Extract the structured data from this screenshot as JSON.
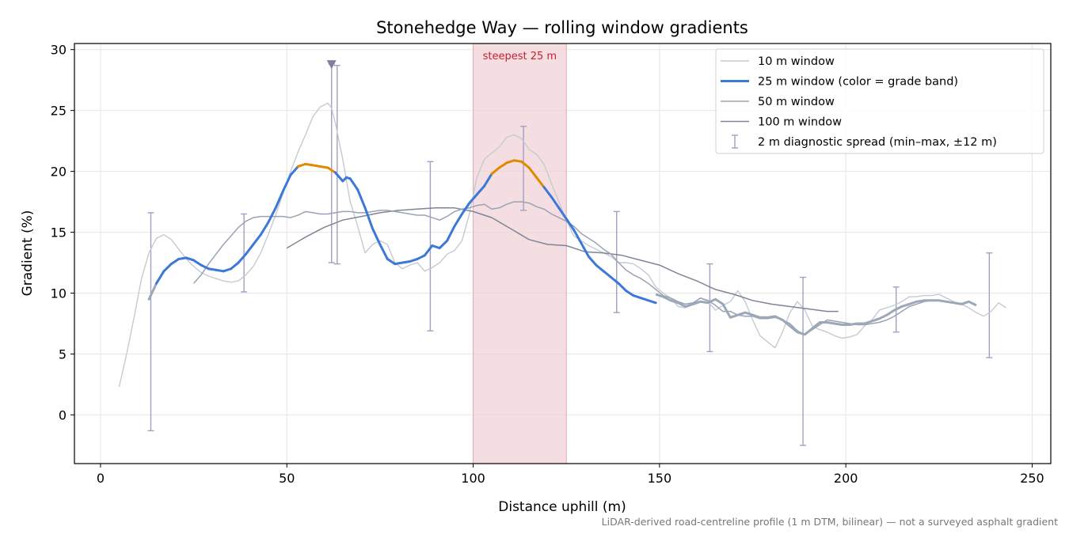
{
  "chart_data": {
    "type": "line",
    "title": "Stonehedge Way — rolling window gradients",
    "xlabel": "Distance uphill (m)",
    "ylabel": "Gradient (%)",
    "xlim": [
      -7,
      255
    ],
    "ylim": [
      -4,
      30.5
    ],
    "xticks": [
      0,
      50,
      100,
      150,
      200,
      250
    ],
    "yticks": [
      0,
      5,
      10,
      15,
      20,
      25,
      30
    ],
    "grid": true,
    "legend_position": "top-right",
    "footnote": "LiDAR-derived road-centreline profile (1 m DTM, bilinear) — not a surveyed asphalt gradient",
    "highlight_band": {
      "x0": 100,
      "x1": 125,
      "label": "steepest 25 m",
      "color": "#e8b4bb"
    },
    "peak_marker": {
      "x": 62,
      "y": 28.8,
      "color": "#8a7aa0"
    },
    "colors": {
      "steep_band": "#e08a00",
      "main": "#3b78d8",
      "tail": "#9aa8b8"
    },
    "series": [
      {
        "name": "10 m window",
        "color": "#c5cad3",
        "width": 1.4,
        "x": [
          5,
          7,
          9,
          11,
          13,
          15,
          17,
          19,
          21,
          23,
          25,
          27,
          29,
          31,
          33,
          35,
          37,
          39,
          41,
          43,
          45,
          47,
          49,
          51,
          53,
          55,
          57,
          59,
          61,
          62,
          63,
          65,
          67,
          69,
          71,
          73,
          75,
          77,
          79,
          81,
          83,
          85,
          87,
          89,
          91,
          93,
          95,
          97,
          99,
          101,
          103,
          105,
          107,
          109,
          111,
          113,
          115,
          117,
          119,
          121,
          123,
          125,
          127,
          129,
          131,
          133,
          135,
          137,
          139,
          141,
          143,
          145,
          147,
          149,
          151,
          153,
          155,
          157,
          159,
          161,
          163,
          165,
          167,
          169,
          171,
          173,
          175,
          177,
          179,
          181,
          183,
          185,
          187,
          189,
          191,
          193,
          195,
          197,
          199,
          201,
          203,
          205,
          207,
          209,
          211,
          213,
          215,
          217,
          219,
          221,
          223,
          225,
          227,
          229,
          231,
          233,
          235,
          237,
          239,
          241,
          243
        ],
        "y": [
          2.3,
          5,
          8,
          11.2,
          13.3,
          14.5,
          14.8,
          14.4,
          13.6,
          12.8,
          12.2,
          11.7,
          11.4,
          11.2,
          11,
          10.9,
          11,
          11.5,
          12.2,
          13.3,
          14.8,
          16.4,
          18.2,
          20,
          21.6,
          23,
          24.5,
          25.3,
          25.6,
          25.2,
          24,
          21,
          17.5,
          15.5,
          13.3,
          14,
          14.3,
          14,
          12.5,
          12,
          12.3,
          12.5,
          11.8,
          12.1,
          12.5,
          13.2,
          13.5,
          14.3,
          16.5,
          19.5,
          21,
          21.5,
          22,
          22.8,
          23,
          22.7,
          21.8,
          21.4,
          20.6,
          19,
          17.5,
          16,
          14.7,
          14.3,
          13.9,
          13.6,
          13.3,
          13,
          12.5,
          12.5,
          12.4,
          12,
          11.5,
          10.5,
          10,
          9.6,
          8.9,
          8.8,
          9.1,
          9.6,
          9.3,
          8.6,
          9,
          9.3,
          10.2,
          9.3,
          7.8,
          6.5,
          6,
          5.5,
          6.8,
          8.4,
          9.3,
          8.6,
          7.3,
          7,
          6.8,
          6.5,
          6.3,
          6.4,
          6.6,
          7.3,
          7.8,
          8.6,
          8.8,
          9,
          9.3,
          9.7,
          9.7,
          9.8,
          9.8,
          9.9,
          9.6,
          9.3,
          9.1,
          8.8,
          8.4,
          8.1,
          8.5,
          9.2,
          8.8
        ]
      },
      {
        "name": "25 m window (color = grade band)",
        "color": "#3b78d8",
        "width": 3,
        "x": [
          13,
          15,
          17,
          19,
          21,
          23,
          25,
          27,
          29,
          31,
          33,
          35,
          37,
          39,
          41,
          43,
          45,
          47,
          49,
          51,
          53,
          55,
          57,
          59,
          61,
          63,
          65,
          66,
          67,
          69,
          71,
          73,
          75,
          77,
          79,
          81,
          83,
          85,
          87,
          89,
          91,
          93,
          95,
          97,
          99,
          101,
          103,
          105,
          107,
          109,
          111,
          113,
          115,
          117,
          119,
          121,
          123,
          125,
          127,
          129,
          131,
          133,
          135,
          137,
          139,
          141,
          143,
          145,
          147,
          149
        ],
        "y": [
          9.5,
          10.8,
          11.8,
          12.4,
          12.8,
          12.9,
          12.7,
          12.3,
          12,
          11.9,
          11.8,
          12,
          12.5,
          13.2,
          14,
          14.8,
          15.8,
          17,
          18.4,
          19.7,
          20.4,
          20.6,
          20.5,
          20.4,
          20.3,
          19.9,
          19.2,
          19.5,
          19.4,
          18.5,
          17,
          15.3,
          14,
          12.8,
          12.4,
          12.5,
          12.6,
          12.8,
          13.1,
          13.9,
          13.7,
          14.3,
          15.5,
          16.5,
          17.4,
          18.1,
          18.8,
          19.8,
          20.3,
          20.7,
          20.9,
          20.8,
          20.3,
          19.5,
          18.7,
          17.9,
          17,
          16.1,
          15.2,
          14.1,
          13,
          12.3,
          11.8,
          11.3,
          10.8,
          10.2,
          9.8,
          9.6,
          9.4,
          9.2
        ],
        "steep_ranges": [
          [
            53,
            63
          ],
          [
            106,
            118
          ]
        ]
      },
      {
        "name": "50 m window",
        "color": "#9aa3b5",
        "width": 1.5,
        "x": [
          25,
          27,
          29,
          31,
          33,
          35,
          37,
          39,
          41,
          43,
          45,
          47,
          49,
          51,
          53,
          55,
          57,
          59,
          61,
          63,
          65,
          67,
          69,
          71,
          73,
          75,
          77,
          79,
          81,
          83,
          85,
          87,
          89,
          91,
          93,
          95,
          97,
          99,
          101,
          103,
          105,
          107,
          109,
          111,
          113,
          115,
          117,
          119,
          121,
          123,
          125,
          127,
          129,
          131,
          133,
          135,
          137,
          139,
          141,
          143,
          145,
          147,
          149,
          151,
          153,
          155,
          157,
          159,
          161,
          163,
          165,
          167,
          169,
          171,
          173,
          175,
          177,
          179,
          181,
          183,
          185,
          187,
          189,
          191,
          193,
          195,
          197,
          199,
          201,
          203,
          205,
          207,
          209,
          211,
          213,
          215,
          217,
          219,
          221,
          223,
          225,
          227,
          229,
          231,
          233,
          235
        ],
        "y": [
          10.8,
          11.5,
          12.4,
          13.2,
          14,
          14.7,
          15.4,
          15.9,
          16.2,
          16.3,
          16.3,
          16.3,
          16.3,
          16.2,
          16.4,
          16.7,
          16.6,
          16.5,
          16.5,
          16.6,
          16.7,
          16.7,
          16.6,
          16.6,
          16.7,
          16.8,
          16.8,
          16.7,
          16.6,
          16.5,
          16.4,
          16.4,
          16.2,
          16,
          16.3,
          16.7,
          16.9,
          17,
          17.2,
          17.3,
          16.9,
          17,
          17.3,
          17.5,
          17.5,
          17.4,
          17.1,
          16.9,
          16.5,
          16.2,
          15.9,
          15.5,
          14.9,
          14.5,
          14.1,
          13.6,
          13.2,
          12.5,
          11.9,
          11.5,
          11.2,
          10.8,
          10.3,
          9.8,
          9.6,
          9.3,
          9.1,
          9.2,
          9.6,
          9.4,
          9,
          8.5,
          8.5,
          8.2,
          8.1,
          8.1,
          7.9,
          7.9,
          8,
          7.8,
          7.5,
          6.9,
          6.6,
          7,
          7.4,
          7.8,
          7.7,
          7.6,
          7.5,
          7.4,
          7.4,
          7.5,
          7.6,
          7.8,
          8.1,
          8.5,
          8.9,
          9.1,
          9.3,
          9.4,
          9.4,
          9.3,
          9.2,
          9.1,
          9.3,
          9
        ]
      },
      {
        "name": "100 m window",
        "color": "#7d8596",
        "width": 1.5,
        "x": [
          50,
          55,
          60,
          65,
          70,
          75,
          80,
          85,
          90,
          95,
          100,
          105,
          110,
          115,
          120,
          125,
          130,
          135,
          140,
          145,
          150,
          155,
          160,
          165,
          170,
          175,
          180,
          185,
          190,
          195,
          198
        ],
        "y": [
          13.7,
          14.6,
          15.4,
          16,
          16.3,
          16.6,
          16.8,
          16.9,
          17,
          17,
          16.7,
          16.2,
          15.3,
          14.4,
          14,
          13.9,
          13.4,
          13.3,
          13.1,
          12.7,
          12.3,
          11.6,
          11,
          10.3,
          9.9,
          9.4,
          9.1,
          8.9,
          8.7,
          8.5,
          8.5
        ]
      }
    ],
    "error_bars": {
      "name": "2 m diagnostic spread (min–max, ±12 m)",
      "color": "#a49ec2",
      "items": [
        {
          "x": 13.5,
          "lo": -1.3,
          "hi": 16.6
        },
        {
          "x": 38.5,
          "lo": 10.1,
          "hi": 16.5
        },
        {
          "x": 62,
          "lo": 12.5,
          "hi": 28.8
        },
        {
          "x": 63.5,
          "lo": 12.4,
          "hi": 28.7
        },
        {
          "x": 88.5,
          "lo": 6.9,
          "hi": 20.8
        },
        {
          "x": 113.5,
          "lo": 16.8,
          "hi": 23.7
        },
        {
          "x": 138.5,
          "lo": 8.4,
          "hi": 16.7
        },
        {
          "x": 163.5,
          "lo": 5.2,
          "hi": 12.4
        },
        {
          "x": 188.5,
          "lo": -2.5,
          "hi": 11.3
        },
        {
          "x": 213.5,
          "lo": 6.8,
          "hi": 10.5
        },
        {
          "x": 238.5,
          "lo": 4.7,
          "hi": 13.3
        }
      ]
    }
  }
}
